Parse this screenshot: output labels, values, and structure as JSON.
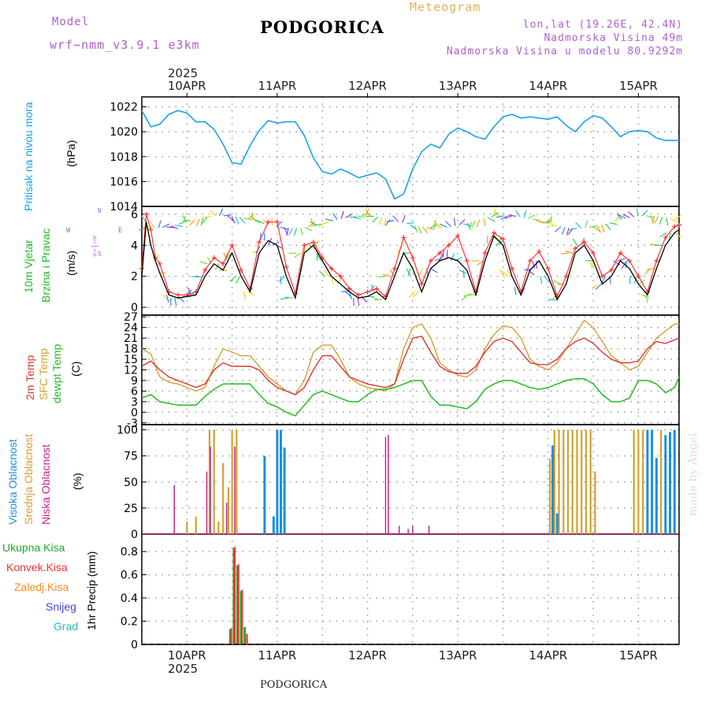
{
  "header": {
    "model_label": "Model",
    "model_name": "wrf−nmm_v3.9.1  e3km",
    "product": "Meteogram",
    "station": "PODGORICA",
    "coords": "lon,lat (19.26E, 42.4N)",
    "elevation": "Nadmorska Visina 49m",
    "model_elevation": "Nadmorska Visina u modelu 80.9292m",
    "year_top": "2025",
    "year_bottom": "2025",
    "footer_station": "PODGORICA",
    "watermark": "made by Angel"
  },
  "colors": {
    "pressure": "#1aa3e6",
    "wind_speed": "#000000",
    "gust": "#ff3333",
    "temp2m": "#e03333",
    "sfc": "#d4a030",
    "dew": "#22bb22",
    "high": "#1a90e0",
    "mid": "#d4a030",
    "low": "#cc2288",
    "total": "#22aa22",
    "conv": "#ee3333",
    "frozen": "#ff8822",
    "snow": "#4444dd",
    "graupel": "#22bbbb"
  },
  "chart_data": {
    "type": "line",
    "days": [
      "10APR",
      "11APR",
      "12APR",
      "13APR",
      "14APR",
      "15APR"
    ],
    "x_range_days": [
      -0.5,
      5.45
    ],
    "panels": {
      "pressure": {
        "ylabel": [
          "Pritisak na nivou mora",
          "(hPa)"
        ],
        "ylim": [
          1014,
          1022.8
        ],
        "yticks": [
          1014,
          1016,
          1018,
          1020,
          1022
        ],
        "x": [
          -0.5,
          -0.4,
          -0.3,
          -0.2,
          -0.1,
          0.0,
          0.1,
          0.2,
          0.3,
          0.4,
          0.5,
          0.6,
          0.7,
          0.8,
          0.9,
          1.0,
          1.1,
          1.2,
          1.3,
          1.4,
          1.5,
          1.6,
          1.7,
          1.8,
          1.9,
          2.0,
          2.1,
          2.2,
          2.3,
          2.4,
          2.5,
          2.6,
          2.7,
          2.8,
          2.9,
          3.0,
          3.1,
          3.2,
          3.3,
          3.4,
          3.5,
          3.6,
          3.7,
          3.8,
          3.9,
          4.0,
          4.1,
          4.2,
          4.3,
          4.4,
          4.5,
          4.6,
          4.7,
          4.8,
          4.9,
          5.0,
          5.1,
          5.2,
          5.3,
          5.4,
          5.45
        ],
        "values": [
          1021.7,
          1020.4,
          1020.6,
          1021.4,
          1021.7,
          1021.5,
          1020.8,
          1020.8,
          1020.2,
          1019.0,
          1017.5,
          1017.4,
          1018.9,
          1020.1,
          1020.9,
          1020.7,
          1020.8,
          1020.8,
          1019.7,
          1017.9,
          1016.8,
          1016.6,
          1017.0,
          1016.7,
          1016.3,
          1016.5,
          1016.7,
          1016.2,
          1014.6,
          1015.0,
          1017.0,
          1018.4,
          1019.0,
          1018.7,
          1019.8,
          1020.3,
          1020.0,
          1019.6,
          1019.4,
          1020.4,
          1021.2,
          1021.4,
          1021.1,
          1021.2,
          1021.1,
          1021.0,
          1021.2,
          1020.5,
          1020.0,
          1020.8,
          1021.3,
          1021.1,
          1020.4,
          1019.6,
          1020.0,
          1020.1,
          1020.0,
          1019.5,
          1019.3,
          1019.3,
          1019.3
        ]
      },
      "wind": {
        "ylabel": [
          "10m Vjetar",
          "Brzina i Pravac",
          "(m/s)"
        ],
        "compass": {
          "n": "N",
          "s": "S",
          "w": "W",
          "e": "E",
          "glyph": "<−|−>"
        },
        "ylim": [
          -0.5,
          6.5
        ],
        "yticks": [
          0,
          2,
          4,
          6
        ],
        "x": [
          -0.5,
          -0.45,
          -0.4,
          -0.35,
          -0.3,
          -0.2,
          -0.1,
          0.0,
          0.1,
          0.2,
          0.3,
          0.4,
          0.5,
          0.6,
          0.7,
          0.8,
          0.9,
          1.0,
          1.1,
          1.2,
          1.3,
          1.4,
          1.5,
          1.6,
          1.7,
          1.8,
          1.9,
          2.0,
          2.1,
          2.2,
          2.3,
          2.4,
          2.5,
          2.6,
          2.7,
          2.8,
          2.9,
          3.0,
          3.1,
          3.2,
          3.3,
          3.4,
          3.5,
          3.6,
          3.7,
          3.8,
          3.9,
          4.0,
          4.1,
          4.2,
          4.3,
          4.4,
          4.5,
          4.6,
          4.7,
          4.8,
          4.9,
          5.0,
          5.1,
          5.2,
          5.3,
          5.4,
          5.45
        ],
        "speed": [
          2.0,
          5.5,
          4.0,
          3.0,
          2.2,
          0.8,
          0.6,
          0.7,
          0.8,
          2.0,
          2.8,
          2.4,
          3.5,
          2.0,
          1.0,
          3.5,
          4.3,
          4.0,
          2.0,
          0.6,
          3.5,
          4.0,
          3.0,
          2.0,
          1.5,
          1.0,
          0.6,
          0.7,
          1.0,
          0.5,
          2.0,
          3.5,
          2.5,
          1.0,
          2.5,
          3.0,
          3.2,
          3.0,
          2.4,
          0.8,
          3.0,
          4.6,
          4.0,
          2.0,
          0.8,
          2.4,
          3.0,
          2.0,
          0.5,
          1.5,
          3.5,
          4.0,
          3.0,
          1.5,
          2.0,
          3.0,
          2.5,
          1.5,
          0.8,
          2.5,
          4.0,
          4.8,
          5.0
        ],
        "gust": [
          2.5,
          6.0,
          5.0,
          3.2,
          2.8,
          1.0,
          0.8,
          0.8,
          1.0,
          2.4,
          3.2,
          2.8,
          4.0,
          2.4,
          1.2,
          4.2,
          5.5,
          5.5,
          2.6,
          0.9,
          4.0,
          4.2,
          3.2,
          2.5,
          2.0,
          1.2,
          0.8,
          1.0,
          1.2,
          0.7,
          2.5,
          4.5,
          3.2,
          1.5,
          3.0,
          3.5,
          4.0,
          4.6,
          3.0,
          1.0,
          3.5,
          4.8,
          4.4,
          2.5,
          1.0,
          3.0,
          3.6,
          2.5,
          0.7,
          2.0,
          3.8,
          4.2,
          3.5,
          2.0,
          2.4,
          3.5,
          3.0,
          2.0,
          1.0,
          3.0,
          4.5,
          5.2,
          5.3
        ]
      },
      "temperature": {
        "ylabel": [
          "2m Temp",
          "SFC Temp",
          "dewpt Temp",
          "(C)"
        ],
        "ylim": [
          -3.5,
          27.5
        ],
        "yticks": [
          -3,
          0,
          3,
          6,
          9,
          12,
          15,
          18,
          21,
          24,
          27
        ],
        "x": [
          -0.5,
          -0.4,
          -0.3,
          -0.2,
          -0.1,
          0.0,
          0.1,
          0.2,
          0.3,
          0.4,
          0.5,
          0.6,
          0.7,
          0.8,
          0.9,
          1.0,
          1.1,
          1.2,
          1.3,
          1.4,
          1.5,
          1.6,
          1.7,
          1.8,
          1.9,
          2.0,
          2.1,
          2.2,
          2.3,
          2.4,
          2.5,
          2.6,
          2.7,
          2.8,
          2.9,
          3.0,
          3.1,
          3.2,
          3.3,
          3.4,
          3.5,
          3.6,
          3.7,
          3.8,
          3.9,
          4.0,
          4.1,
          4.2,
          4.3,
          4.4,
          4.5,
          4.6,
          4.7,
          4.8,
          4.9,
          5.0,
          5.1,
          5.2,
          5.3,
          5.4,
          5.45
        ],
        "t2m": [
          13,
          14.5,
          12,
          10,
          9,
          8,
          7,
          8,
          12,
          14,
          13,
          13,
          13,
          12,
          9,
          7,
          6,
          5,
          7,
          12,
          16,
          16,
          13,
          10,
          9,
          8,
          7.5,
          7,
          8,
          15,
          21,
          21.5,
          17,
          13,
          11.5,
          11,
          11,
          13,
          17,
          20,
          21,
          20,
          17,
          14,
          13.5,
          13.5,
          15,
          18,
          20,
          21,
          19.5,
          17,
          15,
          14,
          14,
          14.5,
          18,
          20,
          19.5,
          20.5,
          21
        ],
        "sfc": [
          18,
          16.5,
          10,
          8.5,
          8,
          7,
          6,
          7,
          13,
          18,
          17,
          16,
          16,
          13,
          10,
          8,
          6,
          5,
          9,
          17,
          19,
          19,
          15,
          10,
          8,
          7,
          6.5,
          6,
          8,
          18,
          24,
          25,
          21,
          14,
          12,
          10.5,
          10,
          12,
          18,
          22,
          24.5,
          24,
          21,
          15,
          13,
          12,
          14,
          18,
          22,
          26,
          24,
          20,
          16,
          14,
          12,
          13,
          17,
          21,
          23,
          25,
          25
        ],
        "dew": [
          4,
          5,
          3,
          2.5,
          2,
          2,
          2,
          4.5,
          6.5,
          8,
          8,
          8,
          8,
          5,
          2.5,
          1.5,
          0,
          -1,
          2,
          5,
          6,
          5,
          4,
          3,
          3,
          5,
          6.5,
          6.5,
          7,
          8,
          9,
          9,
          4.5,
          2,
          2,
          1.5,
          1,
          3,
          6.5,
          8,
          9,
          9,
          8,
          7,
          6.5,
          7,
          8,
          9,
          9.5,
          9.5,
          8,
          5,
          3,
          3,
          4,
          9,
          9,
          8,
          5.5,
          7,
          10
        ]
      },
      "clouds": {
        "ylabel": [
          "Visoka Oblacnost",
          "Srednja Oblacnost",
          "Niska Oblacnost",
          "(%)"
        ],
        "ylim": [
          0,
          105
        ],
        "yticks": [
          0,
          25,
          50,
          75,
          100
        ],
        "high": [
          [
            0.86,
            75
          ],
          [
            0.96,
            17
          ],
          [
            1.0,
            100
          ],
          [
            1.04,
            100
          ],
          [
            1.08,
            83
          ],
          [
            4.05,
            85
          ],
          [
            4.1,
            20
          ],
          [
            5.1,
            100
          ],
          [
            5.15,
            100
          ],
          [
            5.2,
            73
          ],
          [
            5.3,
            95
          ],
          [
            5.35,
            98
          ],
          [
            5.4,
            100
          ]
        ],
        "mid": [
          [
            0.0,
            12
          ],
          [
            0.1,
            17
          ],
          [
            0.25,
            100
          ],
          [
            0.3,
            100
          ],
          [
            0.35,
            12
          ],
          [
            0.4,
            68
          ],
          [
            0.46,
            45
          ],
          [
            0.5,
            100
          ],
          [
            0.55,
            100
          ],
          [
            4.02,
            72
          ],
          [
            4.07,
            100
          ],
          [
            4.12,
            100
          ],
          [
            4.17,
            100
          ],
          [
            4.22,
            100
          ],
          [
            4.27,
            100
          ],
          [
            4.32,
            100
          ],
          [
            4.37,
            100
          ],
          [
            4.42,
            100
          ],
          [
            4.47,
            100
          ],
          [
            4.52,
            60
          ],
          [
            4.95,
            100
          ],
          [
            5.0,
            100
          ],
          [
            5.05,
            100
          ],
          [
            5.1,
            100
          ],
          [
            5.25,
            100
          ]
        ],
        "low": [
          [
            -0.14,
            47
          ],
          [
            0.22,
            60
          ],
          [
            0.26,
            84
          ],
          [
            0.44,
            30
          ],
          [
            0.53,
            84
          ],
          [
            2.2,
            93
          ],
          [
            2.23,
            95
          ],
          [
            2.35,
            8
          ],
          [
            2.45,
            5
          ],
          [
            2.5,
            8
          ],
          [
            2.68,
            8
          ]
        ]
      },
      "precip": {
        "ylabel": [
          "1hr Precip (mm)"
        ],
        "legend": [
          "Ukupna Kisa",
          "Konvek.Kisa",
          "Zaledj.Kisa",
          "Snijeg",
          "Grad"
        ],
        "ylim": [
          0,
          0.95
        ],
        "yticks": [
          0,
          0.2,
          0.4,
          0.6,
          0.8
        ],
        "ytick_labels": [
          "0",
          "0.2",
          "0.4",
          "0.6",
          "0.8"
        ],
        "total": [
          [
            0.48,
            0.13
          ],
          [
            0.52,
            0.83
          ],
          [
            0.56,
            0.68
          ],
          [
            0.6,
            0.46
          ],
          [
            0.64,
            0.15
          ]
        ],
        "conv": [
          [
            0.49,
            0.14
          ],
          [
            0.53,
            0.84
          ],
          [
            0.57,
            0.69
          ],
          [
            0.61,
            0.47
          ],
          [
            0.665,
            0.09
          ]
        ]
      }
    }
  }
}
